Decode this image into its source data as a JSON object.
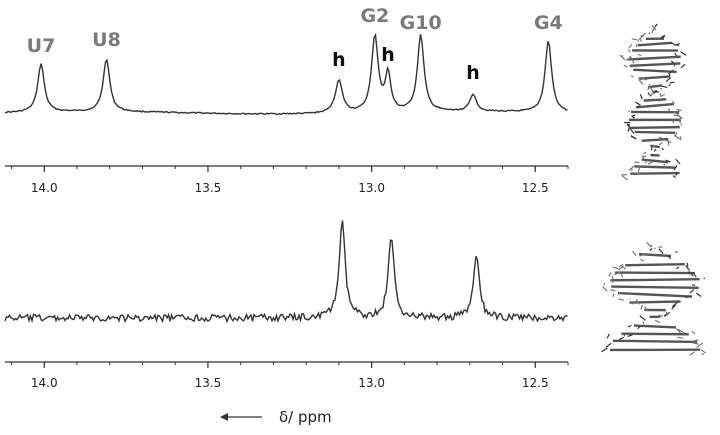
{
  "chart_data": [
    {
      "type": "line",
      "title": "",
      "xlabel": "δ/ ppm",
      "ylabel": "",
      "xlim": [
        14.12,
        12.4
      ],
      "x_reversed": true,
      "x_ticks": [
        "14.0",
        "13.5",
        "13.0",
        "12.5"
      ],
      "x_tick_values": [
        14.0,
        13.5,
        13.0,
        12.5
      ],
      "baseline_noise": "low",
      "peaks": [
        {
          "label": "U7",
          "ppm": 14.01,
          "height": 0.62,
          "width": 0.012,
          "label_color": "gray"
        },
        {
          "label": "U8",
          "ppm": 13.81,
          "height": 0.68,
          "width": 0.012,
          "label_color": "gray"
        },
        {
          "label": "h",
          "ppm": 13.1,
          "height": 0.42,
          "width": 0.013,
          "label_color": "black"
        },
        {
          "label": "G2",
          "ppm": 12.99,
          "height": 0.98,
          "width": 0.012,
          "label_color": "gray"
        },
        {
          "label": "h",
          "ppm": 12.95,
          "height": 0.48,
          "width": 0.01,
          "label_color": "black"
        },
        {
          "label": "G10",
          "ppm": 12.85,
          "height": 0.98,
          "width": 0.012,
          "label_color": "gray"
        },
        {
          "label": "h",
          "ppm": 12.69,
          "height": 0.22,
          "width": 0.012,
          "label_color": "black"
        },
        {
          "label": "G4",
          "ppm": 12.46,
          "height": 0.92,
          "width": 0.012,
          "label_color": "gray"
        }
      ]
    },
    {
      "type": "line",
      "title": "",
      "xlabel": "δ/ ppm",
      "ylabel": "",
      "xlim": [
        14.12,
        12.4
      ],
      "x_reversed": true,
      "x_ticks": [
        "14.0",
        "13.5",
        "13.0",
        "12.5"
      ],
      "x_tick_values": [
        14.0,
        13.5,
        13.0,
        12.5
      ],
      "baseline_noise": "high",
      "peaks": [
        {
          "label": "",
          "ppm": 13.09,
          "height": 1.0,
          "width": 0.011
        },
        {
          "label": "",
          "ppm": 12.94,
          "height": 0.84,
          "width": 0.011
        },
        {
          "label": "",
          "ppm": 12.68,
          "height": 0.64,
          "width": 0.011
        }
      ]
    }
  ],
  "x_axis_title": "δ/ ppm",
  "arrow_direction": "left",
  "structure_images": [
    "rna-duplex-structure",
    "rna-hairpin-structure"
  ]
}
